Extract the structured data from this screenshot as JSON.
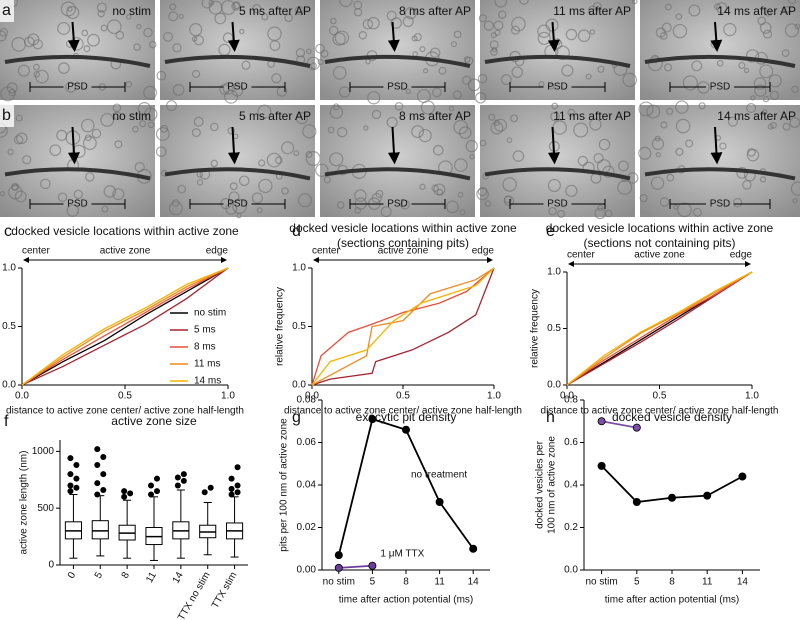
{
  "micrographs": {
    "rows": [
      {
        "label": "a",
        "panels": [
          {
            "caption": "no stim",
            "color": "#000000",
            "psd": "PSD"
          },
          {
            "caption": "5 ms after AP",
            "color": "#c0392b",
            "psd": "PSD"
          },
          {
            "caption": "8 ms after AP",
            "color": "#e8603a",
            "psd": "PSD"
          },
          {
            "caption": "11 ms after AP",
            "color": "#f0a030",
            "psd": "PSD"
          },
          {
            "caption": "14 ms after AP",
            "color": "#f5b800",
            "psd": "PSD"
          }
        ]
      },
      {
        "label": "b",
        "panels": [
          {
            "caption": "no stim",
            "color": "#000000",
            "psd": "PSD"
          },
          {
            "caption": "5 ms after AP",
            "color": "#c0392b",
            "psd": "PSD"
          },
          {
            "caption": "8 ms after AP",
            "color": "#e8603a",
            "psd": "PSD"
          },
          {
            "caption": "11 ms after AP",
            "color": "#f0a030",
            "psd": "PSD"
          },
          {
            "caption": "14 ms after AP",
            "color": "#f5b800",
            "psd": "PSD"
          }
        ]
      }
    ]
  },
  "chart_data": [
    {
      "type": "line",
      "panel": "c",
      "title": "docked vesicle locations within active zone",
      "annotations": [
        "center",
        "active zone",
        "edge"
      ],
      "xlabel": "distance to active zone center/ active zone half-length",
      "ylabel": "relative frequency",
      "xlim": [
        0,
        1
      ],
      "ylim": [
        0,
        1
      ],
      "xticks": [
        {
          "value": 0,
          "label": "0.0"
        },
        0.5,
        {
          "value": 1,
          "label": "1.0"
        }
      ],
      "yticks": [
        {
          "value": 0,
          "label": "0.0"
        },
        0.5,
        {
          "value": 1,
          "label": "1.0"
        }
      ],
      "series": [
        {
          "name": "no stim",
          "color": "#000000",
          "x": [
            0,
            0.2,
            0.4,
            0.6,
            0.8,
            1
          ],
          "values": [
            0,
            0.2,
            0.38,
            0.6,
            0.8,
            1
          ]
        },
        {
          "name": "5 ms",
          "color": "#a6242f",
          "x": [
            0,
            0.2,
            0.4,
            0.6,
            0.8,
            1
          ],
          "values": [
            0,
            0.16,
            0.34,
            0.52,
            0.74,
            1
          ]
        },
        {
          "name": "8 ms",
          "color": "#e8503a",
          "x": [
            0,
            0.2,
            0.4,
            0.6,
            0.8,
            1
          ],
          "values": [
            0,
            0.22,
            0.42,
            0.62,
            0.82,
            1
          ]
        },
        {
          "name": "11 ms",
          "color": "#f08a24",
          "x": [
            0,
            0.2,
            0.4,
            0.6,
            0.8,
            1
          ],
          "values": [
            0,
            0.24,
            0.46,
            0.64,
            0.84,
            1
          ]
        },
        {
          "name": "14 ms",
          "color": "#f5b400",
          "x": [
            0,
            0.2,
            0.4,
            0.6,
            0.8,
            1
          ],
          "values": [
            0,
            0.26,
            0.48,
            0.66,
            0.86,
            1
          ]
        }
      ]
    },
    {
      "type": "line",
      "panel": "d",
      "title": "docked vesicle locations within active zone",
      "subtitle": "(sections containing pits)",
      "annotations": [
        "center",
        "active zone",
        "edge"
      ],
      "xlabel": "distance to active zone center/ active zone half-length",
      "ylabel": "relative frequency",
      "xlim": [
        0,
        1
      ],
      "ylim": [
        0,
        1
      ],
      "xticks": [
        {
          "value": 0,
          "label": "0.0"
        },
        0.5,
        {
          "value": 1,
          "label": "1.0"
        }
      ],
      "yticks": [
        {
          "value": 0,
          "label": "0.0"
        },
        0.5,
        {
          "value": 1,
          "label": "1.0"
        }
      ],
      "series": [
        {
          "color": "#a6242f",
          "x": [
            0,
            0.1,
            0.33,
            0.35,
            0.55,
            0.75,
            0.9,
            1
          ],
          "values": [
            0,
            0.05,
            0.1,
            0.2,
            0.3,
            0.45,
            0.6,
            1
          ]
        },
        {
          "color": "#e8503a",
          "x": [
            0,
            0.05,
            0.2,
            0.33,
            0.5,
            0.7,
            0.85,
            1
          ],
          "values": [
            0,
            0.25,
            0.45,
            0.52,
            0.62,
            0.7,
            0.8,
            1
          ]
        },
        {
          "color": "#f08a24",
          "x": [
            0,
            0.3,
            0.33,
            0.5,
            0.65,
            0.9,
            1
          ],
          "values": [
            0,
            0.25,
            0.5,
            0.55,
            0.78,
            0.9,
            1
          ]
        },
        {
          "color": "#f5b400",
          "x": [
            0,
            0.1,
            0.3,
            0.45,
            0.6,
            0.9,
            1
          ],
          "values": [
            0,
            0.2,
            0.3,
            0.55,
            0.7,
            0.85,
            1
          ]
        }
      ]
    },
    {
      "type": "line",
      "panel": "e",
      "title": "docked vesicle locations within active zone",
      "subtitle": "(sections not containing pits)",
      "annotations": [
        "center",
        "active zone",
        "edge"
      ],
      "xlabel": "distance to active zone center/ active zone half-length",
      "ylabel": "relative frequency",
      "xlim": [
        0,
        1
      ],
      "ylim": [
        0,
        1
      ],
      "xticks": [
        {
          "value": 0,
          "label": "0.0"
        },
        0.5,
        {
          "value": 1,
          "label": "1.0"
        }
      ],
      "yticks": [
        {
          "value": 0,
          "label": "0.0"
        },
        0.5,
        {
          "value": 1,
          "label": "1.0"
        }
      ],
      "series": [
        {
          "color": "#000000",
          "x": [
            0,
            0.2,
            0.4,
            0.6,
            0.8,
            1
          ],
          "values": [
            0,
            0.2,
            0.4,
            0.6,
            0.8,
            1
          ]
        },
        {
          "color": "#a6242f",
          "x": [
            0,
            0.2,
            0.4,
            0.6,
            0.8,
            1
          ],
          "values": [
            0,
            0.19,
            0.38,
            0.58,
            0.79,
            1
          ]
        },
        {
          "color": "#e8503a",
          "x": [
            0,
            0.2,
            0.4,
            0.6,
            0.8,
            1
          ],
          "values": [
            0,
            0.22,
            0.42,
            0.62,
            0.8,
            1
          ]
        },
        {
          "color": "#f08a24",
          "x": [
            0,
            0.2,
            0.4,
            0.6,
            0.8,
            1
          ],
          "values": [
            0,
            0.24,
            0.46,
            0.63,
            0.82,
            1
          ]
        },
        {
          "color": "#f5b400",
          "x": [
            0,
            0.2,
            0.4,
            0.6,
            0.8,
            1
          ],
          "values": [
            0,
            0.26,
            0.47,
            0.64,
            0.83,
            1
          ]
        }
      ]
    },
    {
      "type": "box",
      "panel": "f",
      "title": "active zone size",
      "ylabel": "active zone length (nm)",
      "categories": [
        "0",
        "5",
        "8",
        "11",
        "14",
        "TTX no stim",
        "TTX stim"
      ],
      "ylim": [
        0,
        1100
      ],
      "yticks": [
        0,
        500,
        1000
      ],
      "min": [
        60,
        80,
        60,
        40,
        60,
        90,
        70
      ],
      "q1": [
        230,
        230,
        220,
        180,
        230,
        240,
        230
      ],
      "median": [
        300,
        300,
        280,
        250,
        300,
        290,
        300
      ],
      "q3": [
        380,
        390,
        350,
        330,
        380,
        350,
        370
      ],
      "max": [
        620,
        610,
        570,
        600,
        660,
        550,
        600
      ],
      "outliers": [
        [
          650,
          680,
          700,
          760,
          800,
          880,
          940
        ],
        [
          620,
          660,
          720,
          800,
          880,
          950,
          1020
        ],
        [
          600,
          630,
          650
        ],
        [
          620,
          650,
          700,
          760
        ],
        [
          700,
          740,
          770,
          800
        ],
        [
          640,
          680
        ],
        [
          620,
          640,
          670,
          700,
          760,
          860
        ]
      ]
    },
    {
      "type": "line",
      "panel": "g",
      "title": "exocytic pit density",
      "xlabel": "time after action potential (ms)",
      "ylabel": [
        "pits per 100 nm of active zone"
      ],
      "categories": [
        "no stim",
        "5",
        "8",
        "11",
        "14"
      ],
      "ylim": [
        0,
        0.08
      ],
      "yticks": [
        {
          "value": 0,
          "label": "0.00"
        },
        0.02,
        0.04,
        0.06,
        0.08
      ],
      "series": [
        {
          "name": "no treatment",
          "color": "#000000",
          "values": [
            0.007,
            0.071,
            0.066,
            0.032,
            0.01
          ]
        },
        {
          "name": "1 μM TTX",
          "color": "#6a3d9a",
          "values": [
            0.001,
            0.002,
            null,
            null,
            null
          ]
        }
      ]
    },
    {
      "type": "line",
      "panel": "h",
      "title": "docked vesicle density",
      "xlabel": "time after action potential (ms)",
      "ylabel": [
        "docked vesicles per",
        "100 nm of active zone"
      ],
      "categories": [
        "no stim",
        "5",
        "8",
        "11",
        "14"
      ],
      "ylim": [
        0,
        0.8
      ],
      "yticks": [
        {
          "value": 0,
          "label": "0.0"
        },
        0.2,
        0.4,
        0.6,
        0.8
      ],
      "series": [
        {
          "color": "#000000",
          "values": [
            0.49,
            0.32,
            0.34,
            0.35,
            0.44
          ]
        },
        {
          "color": "#7b4fa8",
          "values": [
            0.7,
            0.67,
            null,
            null,
            null
          ]
        }
      ]
    }
  ]
}
